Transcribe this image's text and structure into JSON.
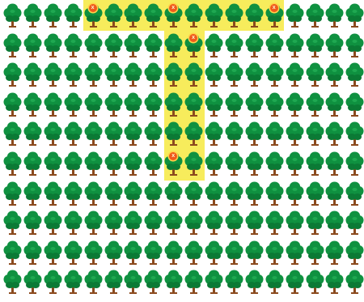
{
  "board": {
    "columns": 18,
    "rows": 10,
    "cell_icon": "tree-icon",
    "marker_icon": "x-marker-icon",
    "marker_glyph": "x",
    "colors": {
      "background": "#ffffff",
      "highlight": "#f7ec5c",
      "canopy": "#0f9140",
      "canopy_dark": "#0b7a35",
      "trunk": "#8b4a1e",
      "marker": "#f05a1c"
    },
    "highlight_shape": "T",
    "highlighted_cells": [
      [
        0,
        4
      ],
      [
        0,
        5
      ],
      [
        0,
        6
      ],
      [
        0,
        7
      ],
      [
        0,
        8
      ],
      [
        0,
        9
      ],
      [
        0,
        10
      ],
      [
        0,
        11
      ],
      [
        0,
        12
      ],
      [
        0,
        13
      ],
      [
        1,
        8
      ],
      [
        1,
        9
      ],
      [
        2,
        8
      ],
      [
        2,
        9
      ],
      [
        3,
        8
      ],
      [
        3,
        9
      ],
      [
        4,
        8
      ],
      [
        4,
        9
      ],
      [
        5,
        8
      ],
      [
        5,
        9
      ]
    ],
    "marked_cells": [
      [
        0,
        4
      ],
      [
        0,
        8
      ],
      [
        0,
        13
      ],
      [
        1,
        9
      ],
      [
        5,
        8
      ]
    ]
  }
}
